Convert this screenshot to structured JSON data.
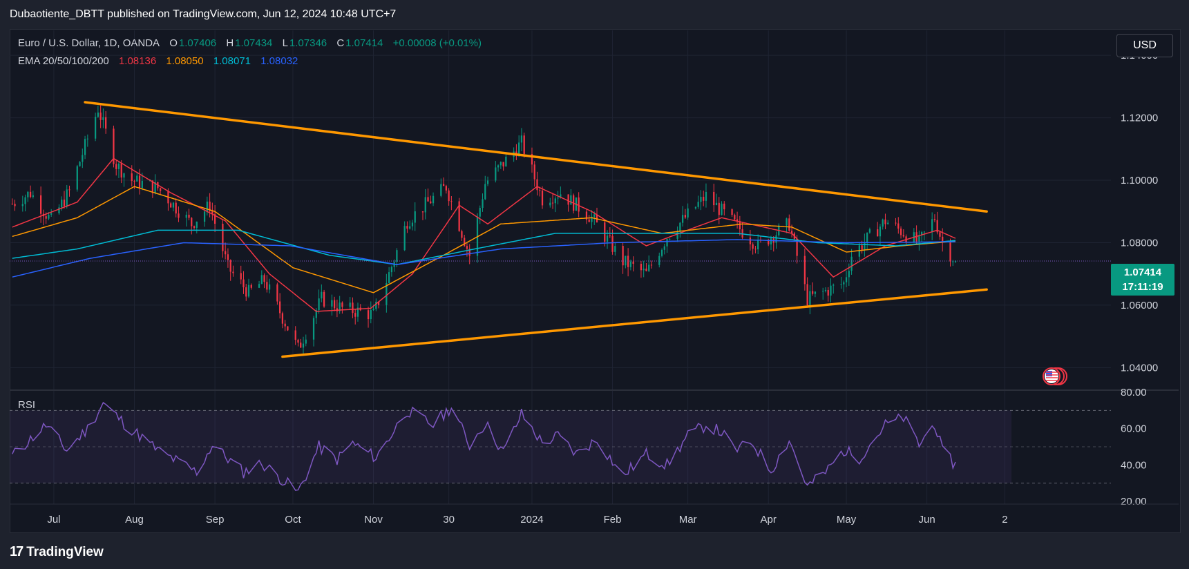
{
  "publisher": {
    "text": "Dubaotiente_DBTT published on TradingView.com, Jun 12, 2024 10:48 UTC+7"
  },
  "brand": {
    "name": "TradingView"
  },
  "currency_button": "USD",
  "legend": {
    "symbol": "Euro / U.S. Dollar, 1D, OANDA",
    "o_label": "O",
    "o_value": "1.07406",
    "h_label": "H",
    "h_value": "1.07434",
    "l_label": "L",
    "l_value": "1.07346",
    "c_label": "C",
    "c_value": "1.07414",
    "change": "+0.00008 (+0.01%)",
    "ema_label": "EMA 20/50/100/200",
    "ema20": "1.08136",
    "ema50": "1.08050",
    "ema100": "1.08071",
    "ema200": "1.08032"
  },
  "price_label": {
    "price": "1.07414",
    "countdown": "17:11:19"
  },
  "rsi_label": "RSI",
  "colors": {
    "bg": "#131722",
    "up": "#089981",
    "down": "#f23645",
    "ema20": "#f23645",
    "ema50": "#ff9800",
    "ema100": "#00bcd4",
    "ema200": "#2962ff",
    "trendline": "#ff9800",
    "rsi": "#7e57c2"
  },
  "chart_data": [
    {
      "type": "candlestick",
      "title": "Euro / U.S. Dollar, 1D, OANDA",
      "y_ticks": [
        "1.14000",
        "1.12000",
        "1.10000",
        "1.08000",
        "1.06000",
        "1.04000"
      ],
      "x_ticks": [
        "Jul",
        "Aug",
        "Sep",
        "Oct",
        "Nov",
        "30",
        "2024",
        "Feb",
        "Mar",
        "Apr",
        "May",
        "Jun",
        "2"
      ],
      "ylim": [
        1.033,
        1.148
      ],
      "grid": true,
      "last_price": 1.07414,
      "waypoints": [
        {
          "date": "2023-06-15",
          "close": 1.0925
        },
        {
          "date": "2023-06-22",
          "close": 1.096
        },
        {
          "date": "2023-06-30",
          "close": 1.087
        },
        {
          "date": "2023-07-07",
          "close": 1.0965
        },
        {
          "date": "2023-07-18",
          "close": 1.123
        },
        {
          "date": "2023-07-25",
          "close": 1.105
        },
        {
          "date": "2023-07-31",
          "close": 1.1
        },
        {
          "date": "2023-08-10",
          "close": 1.0975
        },
        {
          "date": "2023-08-23",
          "close": 1.086
        },
        {
          "date": "2023-08-30",
          "close": 1.092
        },
        {
          "date": "2023-09-06",
          "close": 1.072
        },
        {
          "date": "2023-09-14",
          "close": 1.064
        },
        {
          "date": "2023-09-20",
          "close": 1.068
        },
        {
          "date": "2023-10-03",
          "close": 1.046
        },
        {
          "date": "2023-10-12",
          "close": 1.062
        },
        {
          "date": "2023-10-20",
          "close": 1.059
        },
        {
          "date": "2023-11-01",
          "close": 1.057
        },
        {
          "date": "2023-11-07",
          "close": 1.07
        },
        {
          "date": "2023-11-14",
          "close": 1.087
        },
        {
          "date": "2023-11-29",
          "close": 1.098
        },
        {
          "date": "2023-12-08",
          "close": 1.076
        },
        {
          "date": "2023-12-14",
          "close": 1.099
        },
        {
          "date": "2023-12-28",
          "close": 1.112
        },
        {
          "date": "2024-01-05",
          "close": 1.094
        },
        {
          "date": "2024-01-12",
          "close": 1.096
        },
        {
          "date": "2024-01-24",
          "close": 1.088
        },
        {
          "date": "2024-02-05",
          "close": 1.074
        },
        {
          "date": "2024-02-14",
          "close": 1.07
        },
        {
          "date": "2024-02-22",
          "close": 1.082
        },
        {
          "date": "2024-03-08",
          "close": 1.095
        },
        {
          "date": "2024-03-19",
          "close": 1.086
        },
        {
          "date": "2024-03-28",
          "close": 1.079
        },
        {
          "date": "2024-04-09",
          "close": 1.086
        },
        {
          "date": "2024-04-16",
          "close": 1.062
        },
        {
          "date": "2024-04-30",
          "close": 1.067
        },
        {
          "date": "2024-05-03",
          "close": 1.076
        },
        {
          "date": "2024-05-16",
          "close": 1.087
        },
        {
          "date": "2024-05-29",
          "close": 1.08
        },
        {
          "date": "2024-06-04",
          "close": 1.088
        },
        {
          "date": "2024-06-07",
          "close": 1.08
        },
        {
          "date": "2024-06-12",
          "close": 1.0741
        }
      ],
      "ema": [
        {
          "name": "EMA 20",
          "waypoints": [
            [
              "2023-06-15",
              1.085
            ],
            [
              "2023-07-10",
              1.093
            ],
            [
              "2023-07-24",
              1.107
            ],
            [
              "2023-08-15",
              1.096
            ],
            [
              "2023-09-05",
              1.087
            ],
            [
              "2023-09-22",
              1.07
            ],
            [
              "2023-10-10",
              1.058
            ],
            [
              "2023-10-31",
              1.059
            ],
            [
              "2023-11-16",
              1.07
            ],
            [
              "2023-12-04",
              1.092
            ],
            [
              "2023-12-15",
              1.086
            ],
            [
              "2024-01-03",
              1.098
            ],
            [
              "2024-01-24",
              1.09
            ],
            [
              "2024-02-14",
              1.079
            ],
            [
              "2024-03-04",
              1.085
            ],
            [
              "2024-03-14",
              1.088
            ],
            [
              "2024-04-10",
              1.083
            ],
            [
              "2024-04-26",
              1.069
            ],
            [
              "2024-05-16",
              1.079
            ],
            [
              "2024-06-05",
              1.084
            ],
            [
              "2024-06-12",
              1.0814
            ]
          ]
        },
        {
          "name": "EMA 50",
          "waypoints": [
            [
              "2023-06-15",
              1.082
            ],
            [
              "2023-07-10",
              1.088
            ],
            [
              "2023-08-01",
              1.098
            ],
            [
              "2023-09-01",
              1.09
            ],
            [
              "2023-10-01",
              1.072
            ],
            [
              "2023-11-01",
              1.064
            ],
            [
              "2023-11-28",
              1.076
            ],
            [
              "2023-12-20",
              1.086
            ],
            [
              "2024-01-24",
              1.088
            ],
            [
              "2024-02-20",
              1.083
            ],
            [
              "2024-03-22",
              1.086
            ],
            [
              "2024-04-10",
              1.085
            ],
            [
              "2024-05-01",
              1.077
            ],
            [
              "2024-05-22",
              1.079
            ],
            [
              "2024-06-12",
              1.0805
            ]
          ]
        },
        {
          "name": "EMA 100",
          "waypoints": [
            [
              "2023-06-15",
              1.075
            ],
            [
              "2023-07-10",
              1.078
            ],
            [
              "2023-08-10",
              1.084
            ],
            [
              "2023-09-10",
              1.084
            ],
            [
              "2023-10-15",
              1.076
            ],
            [
              "2023-11-10",
              1.073
            ],
            [
              "2023-12-10",
              1.078
            ],
            [
              "2024-01-10",
              1.083
            ],
            [
              "2024-02-10",
              1.083
            ],
            [
              "2024-03-20",
              1.083
            ],
            [
              "2024-04-20",
              1.08
            ],
            [
              "2024-05-20",
              1.079
            ],
            [
              "2024-06-12",
              1.0807
            ]
          ]
        },
        {
          "name": "EMA 200",
          "waypoints": [
            [
              "2023-06-15",
              1.069
            ],
            [
              "2023-07-15",
              1.075
            ],
            [
              "2023-08-20",
              1.08
            ],
            [
              "2023-09-30",
              1.079
            ],
            [
              "2023-11-10",
              1.073
            ],
            [
              "2023-12-20",
              1.078
            ],
            [
              "2024-02-01",
              1.08
            ],
            [
              "2024-03-20",
              1.081
            ],
            [
              "2024-05-01",
              1.08
            ],
            [
              "2024-06-12",
              1.0803
            ]
          ]
        }
      ],
      "trendlines": [
        {
          "name": "upper",
          "start": [
            "2023-07-13",
            1.125
          ],
          "end": [
            "2024-06-24",
            1.09
          ]
        },
        {
          "name": "lower",
          "start": [
            "2023-09-27",
            1.0435
          ],
          "end": [
            "2024-06-24",
            1.065
          ]
        }
      ]
    },
    {
      "type": "line",
      "title": "RSI",
      "y_ticks": [
        "80.00",
        "60.00",
        "40.00",
        "20.00"
      ],
      "ylim": [
        20,
        80
      ],
      "bands": [
        30,
        50,
        70
      ],
      "x": [
        "2023-06-15",
        "2023-06-28",
        "2023-07-06",
        "2023-07-14",
        "2023-07-20",
        "2023-07-28",
        "2023-08-10",
        "2023-08-25",
        "2023-08-31",
        "2023-09-12",
        "2023-09-19",
        "2023-10-03",
        "2023-10-11",
        "2023-10-18",
        "2023-10-24",
        "2023-11-02",
        "2023-11-14",
        "2023-11-24",
        "2023-12-01",
        "2023-12-08",
        "2023-12-14",
        "2023-12-21",
        "2023-12-28",
        "2024-01-05",
        "2024-01-11",
        "2024-01-18",
        "2024-01-26",
        "2024-02-05",
        "2024-02-14",
        "2024-02-22",
        "2024-03-01",
        "2024-03-08",
        "2024-03-14",
        "2024-03-19",
        "2024-03-26",
        "2024-04-02",
        "2024-04-09",
        "2024-04-16",
        "2024-04-23",
        "2024-04-30",
        "2024-05-06",
        "2024-05-16",
        "2024-05-23",
        "2024-05-29",
        "2024-06-04",
        "2024-06-07",
        "2024-06-12"
      ],
      "y": [
        45,
        62,
        48,
        60,
        74,
        63,
        48,
        36,
        51,
        36,
        41,
        25,
        50,
        43,
        52,
        44,
        70,
        62,
        72,
        51,
        63,
        47,
        68,
        52,
        56,
        46,
        54,
        34,
        46,
        40,
        56,
        62,
        58,
        48,
        52,
        37,
        54,
        28,
        36,
        48,
        44,
        62,
        66,
        51,
        63,
        47,
        40
      ]
    }
  ]
}
